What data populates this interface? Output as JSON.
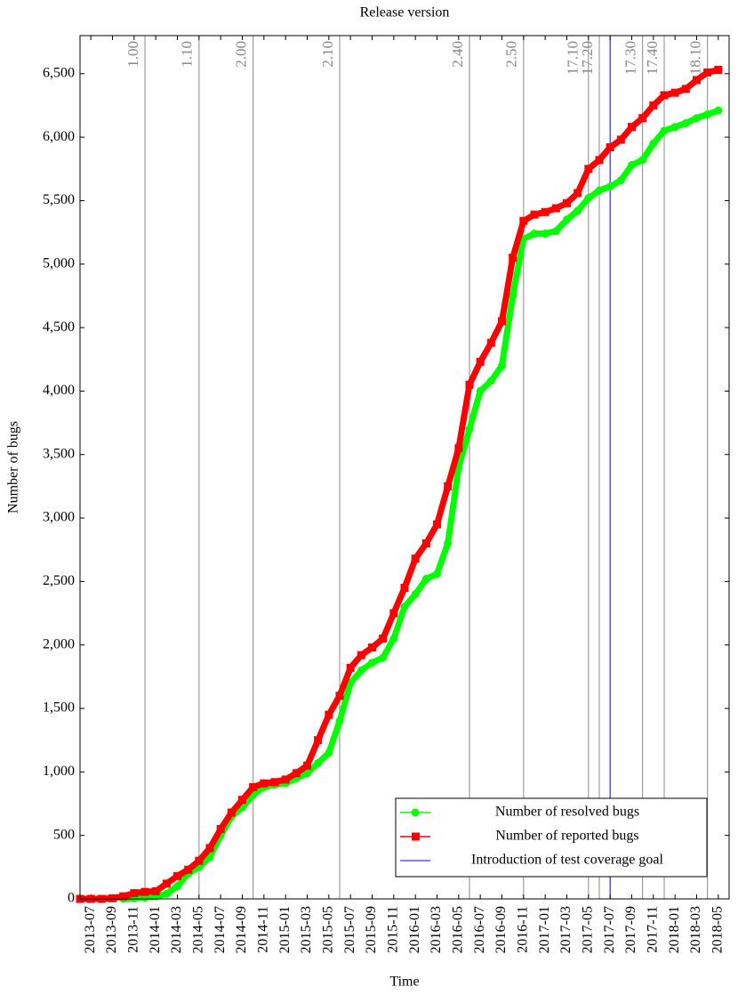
{
  "chart_data": {
    "type": "line",
    "title": "Release version",
    "x_label": "Time",
    "y_label": "Number of bugs",
    "x": [
      "2013-06",
      "2013-07",
      "2013-08",
      "2013-09",
      "2013-10",
      "2013-11",
      "2013-12",
      "2014-01",
      "2014-02",
      "2014-03",
      "2014-04",
      "2014-05",
      "2014-06",
      "2014-07",
      "2014-08",
      "2014-09",
      "2014-10",
      "2014-11",
      "2014-12",
      "2015-01",
      "2015-02",
      "2015-03",
      "2015-04",
      "2015-05",
      "2015-06",
      "2015-07",
      "2015-08",
      "2015-09",
      "2015-10",
      "2015-11",
      "2015-12",
      "2016-01",
      "2016-02",
      "2016-03",
      "2016-04",
      "2016-05",
      "2016-06",
      "2016-07",
      "2016-08",
      "2016-09",
      "2016-10",
      "2016-11",
      "2016-12",
      "2017-01",
      "2017-02",
      "2017-03",
      "2017-04",
      "2017-05",
      "2017-06",
      "2017-07",
      "2017-08",
      "2017-09",
      "2017-10",
      "2017-11",
      "2017-12",
      "2018-01",
      "2018-02",
      "2018-03",
      "2018-04",
      "2018-05"
    ],
    "series": [
      {
        "name": "Number of resolved bugs",
        "color": "#00ff00",
        "marker": "circle",
        "values": [
          null,
          null,
          null,
          null,
          0,
          5,
          10,
          20,
          40,
          100,
          200,
          250,
          330,
          500,
          650,
          720,
          820,
          880,
          900,
          910,
          950,
          990,
          1070,
          1150,
          1400,
          1700,
          1800,
          1860,
          1900,
          2050,
          2300,
          2400,
          2520,
          2560,
          2800,
          3400,
          3700,
          4000,
          4080,
          4200,
          4750,
          5200,
          5240,
          5240,
          5260,
          5350,
          5420,
          5520,
          5580,
          5610,
          5660,
          5780,
          5820,
          5950,
          6050,
          6080,
          6110,
          6150,
          6180,
          6210
        ]
      },
      {
        "name": "Number of reported bugs",
        "color": "#ff0000",
        "marker": "square",
        "values": [
          0,
          0,
          0,
          5,
          20,
          45,
          55,
          60,
          120,
          180,
          230,
          300,
          400,
          550,
          680,
          780,
          880,
          910,
          920,
          940,
          990,
          1050,
          1250,
          1450,
          1600,
          1820,
          1920,
          1980,
          2050,
          2250,
          2450,
          2680,
          2800,
          2950,
          3250,
          3550,
          4050,
          4230,
          4380,
          4550,
          5050,
          5340,
          5390,
          5410,
          5440,
          5480,
          5560,
          5750,
          5820,
          5920,
          5980,
          6080,
          6150,
          6250,
          6330,
          6350,
          6380,
          6450,
          6510,
          6530
        ]
      }
    ],
    "releases": [
      {
        "label": "1.00",
        "x": "2013-12"
      },
      {
        "label": "1.10",
        "x": "2014-05"
      },
      {
        "label": "2.00",
        "x": "2014-10"
      },
      {
        "label": "2.10",
        "x": "2015-06"
      },
      {
        "label": "2.40",
        "x": "2016-06"
      },
      {
        "label": "2.50",
        "x": "2016-11"
      },
      {
        "label": "17.10",
        "x": "2017-05"
      },
      {
        "label": "17.20",
        "x": "2017-06"
      },
      {
        "label": "17.30",
        "x": "2017-10"
      },
      {
        "label": "17.40",
        "x": "2017-12"
      },
      {
        "label": "18.10",
        "x": "2018-04"
      }
    ],
    "coverage_goal": {
      "name": "Introduction of test coverage goal",
      "x": "2017-07",
      "color": "#0000ff"
    },
    "xlim": [
      "2013-06",
      "2018-06"
    ],
    "xticks": [
      "2013-07",
      "2013-09",
      "2013-11",
      "2014-01",
      "2014-03",
      "2014-05",
      "2014-07",
      "2014-09",
      "2014-11",
      "2015-01",
      "2015-03",
      "2015-05",
      "2015-07",
      "2015-09",
      "2015-11",
      "2016-01",
      "2016-03",
      "2016-05",
      "2016-07",
      "2016-09",
      "2016-11",
      "2017-01",
      "2017-03",
      "2017-05",
      "2017-07",
      "2017-09",
      "2017-11",
      "2018-01",
      "2018-03",
      "2018-05"
    ],
    "ylim": [
      0,
      6800
    ],
    "yticks": [
      0,
      500,
      {
        "value": 1000,
        "label": "1,000"
      },
      {
        "value": 1500,
        "label": "1,500"
      },
      {
        "value": 2000,
        "label": "2,000"
      },
      {
        "value": 2500,
        "label": "2,500"
      },
      {
        "value": 3000,
        "label": "3,000"
      },
      {
        "value": 3500,
        "label": "3,500"
      },
      {
        "value": 4000,
        "label": "4,000"
      },
      {
        "value": 4500,
        "label": "4,500"
      },
      {
        "value": 5000,
        "label": "5,000"
      },
      {
        "value": 5500,
        "label": "5,500"
      },
      {
        "value": 6000,
        "label": "6,000"
      },
      {
        "value": 6500,
        "label": "6,500"
      }
    ],
    "legend_position": "lower right"
  }
}
